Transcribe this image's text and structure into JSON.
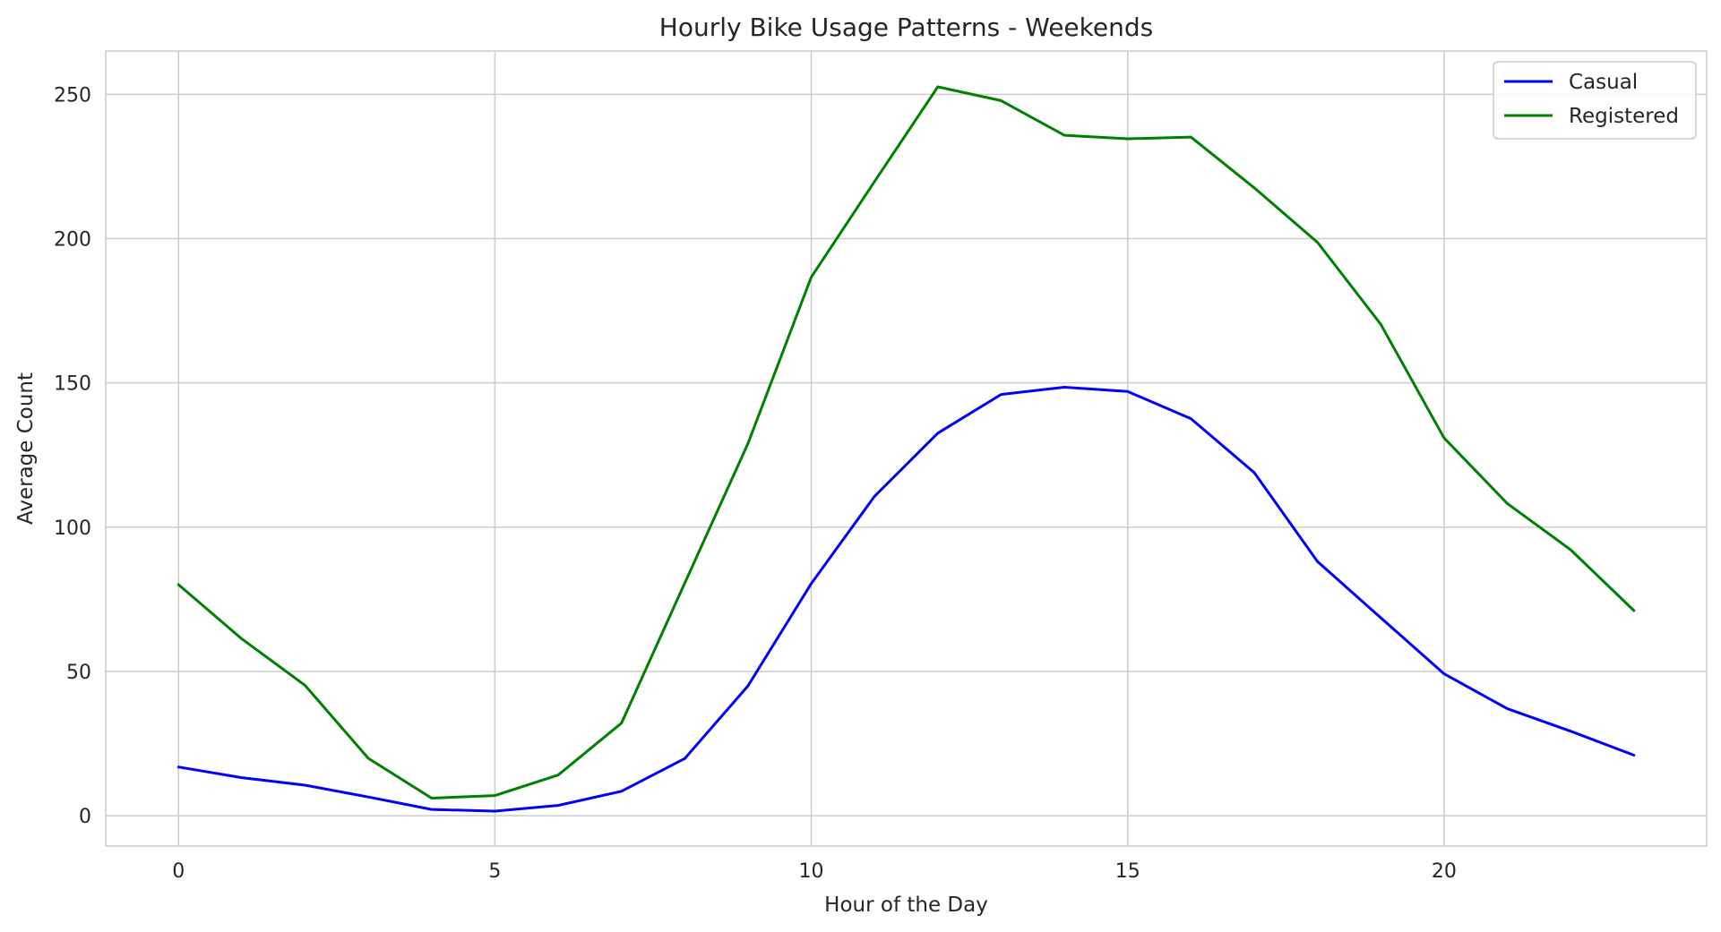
{
  "chart_data": {
    "type": "line",
    "title": "Hourly Bike Usage Patterns - Weekends",
    "xlabel": "Hour of the Day",
    "ylabel": "Average Count",
    "xlim": [
      -1.15,
      24.15
    ],
    "ylim": [
      -10.5,
      265
    ],
    "xticks": [
      0,
      5,
      10,
      15,
      20
    ],
    "yticks": [
      0,
      50,
      100,
      150,
      200,
      250
    ],
    "grid": true,
    "legend_position": "top-right",
    "x": [
      0,
      1,
      2,
      3,
      4,
      5,
      6,
      7,
      8,
      9,
      10,
      11,
      12,
      13,
      14,
      15,
      16,
      17,
      18,
      19,
      20,
      21,
      22,
      23
    ],
    "series": [
      {
        "name": "Casual",
        "color": "#0000ff",
        "values": [
          16.9,
          13.2,
          10.6,
          6.5,
          2.2,
          1.6,
          3.6,
          8.5,
          19.8,
          45.0,
          80.5,
          110.7,
          132.6,
          146.0,
          148.5,
          147.0,
          137.6,
          118.9,
          88.1,
          68.6,
          49.2,
          37.1,
          29.3,
          21.0
        ]
      },
      {
        "name": "Registered",
        "color": "#008000",
        "values": [
          80.1,
          61.3,
          45.2,
          19.9,
          6.1,
          7.0,
          14.1,
          32.1,
          80.6,
          129.0,
          186.7,
          219.8,
          252.6,
          247.8,
          235.8,
          234.6,
          235.2,
          217.6,
          198.7,
          170.3,
          130.9,
          108.2,
          92.2,
          71.1
        ]
      }
    ]
  }
}
